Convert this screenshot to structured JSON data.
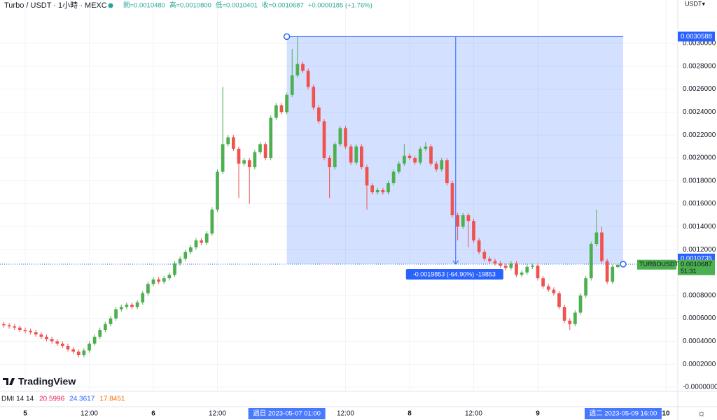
{
  "header": {
    "symbol": "Turbo / USDT · 1小時 · MEXC",
    "ohlc": [
      "開=0.0010480",
      "高=0.0010800",
      "低=0.0010401",
      "收=0.0010687",
      "+0.0000185 (+1.76%)"
    ]
  },
  "chart_data": {
    "type": "candlestick",
    "up_color": "#4caf50",
    "down_color": "#ef5350",
    "x": [
      -4,
      -3,
      -2,
      -1,
      0,
      1,
      2,
      3,
      4,
      5,
      6,
      7,
      8,
      9,
      10,
      11,
      12,
      13,
      14,
      15,
      16,
      17,
      18,
      19,
      20,
      21,
      22,
      23,
      24,
      25,
      26,
      27,
      28,
      29,
      30,
      31,
      32,
      33,
      34,
      35,
      36,
      37,
      38,
      39,
      40,
      41,
      42,
      43,
      44,
      45,
      46,
      47,
      48,
      49,
      50,
      51,
      52,
      53,
      54,
      55,
      56,
      57,
      58,
      59,
      60,
      61,
      62,
      63,
      64,
      65,
      66,
      67,
      68,
      69,
      70,
      71,
      72,
      73,
      74,
      75,
      76,
      77,
      78,
      79,
      80,
      81,
      82,
      83,
      84,
      85,
      86,
      87,
      88,
      89,
      90,
      91,
      92,
      93,
      94,
      95,
      96,
      97,
      98,
      99,
      100,
      101,
      102,
      103,
      104,
      105,
      106,
      107,
      108,
      109,
      110,
      111
    ],
    "open": [
      0.00055,
      0.00054,
      0.00053,
      0.00052,
      0.0005,
      0.00049,
      0.00048,
      0.00046,
      0.00044,
      0.00042,
      0.0004,
      0.00038,
      0.00036,
      0.00033,
      0.00031,
      0.00028,
      0.00032,
      0.00038,
      0.00044,
      0.0005,
      0.00055,
      0.0006,
      0.00068,
      0.0007,
      0.00072,
      0.0007,
      0.00074,
      0.00082,
      0.0009,
      0.00094,
      0.00092,
      0.00095,
      0.00098,
      0.00108,
      0.00112,
      0.00118,
      0.00122,
      0.00128,
      0.00126,
      0.00134,
      0.00155,
      0.00188,
      0.00212,
      0.00218,
      0.00208,
      0.00195,
      0.00198,
      0.00192,
      0.00205,
      0.00212,
      0.002,
      0.00235,
      0.00246,
      0.0024,
      0.00255,
      0.00272,
      0.00282,
      0.00276,
      0.00262,
      0.00244,
      0.00232,
      0.002,
      0.00192,
      0.00212,
      0.00226,
      0.0021,
      0.00196,
      0.0021,
      0.00192,
      0.00176,
      0.0017,
      0.00172,
      0.0017,
      0.00178,
      0.00188,
      0.00195,
      0.00202,
      0.002,
      0.00196,
      0.00208,
      0.0021,
      0.00195,
      0.0019,
      0.00198,
      0.00178,
      0.0015,
      0.0014,
      0.0015,
      0.00145,
      0.00128,
      0.00118,
      0.00112,
      0.0011,
      0.00108,
      0.00106,
      0.00104,
      0.00108,
      0.00098,
      0.001,
      0.00105,
      0.00106,
      0.00095,
      0.00088,
      0.00085,
      0.00082,
      0.0007,
      0.00058,
      0.00055,
      0.00065,
      0.0008,
      0.00095,
      0.00125,
      0.00135,
      0.0011,
      0.00092,
      0.001048
    ],
    "high": [
      0.00057,
      0.00056,
      0.00055,
      0.00054,
      0.00052,
      0.00051,
      0.0005,
      0.00048,
      0.00046,
      0.00044,
      0.00042,
      0.0004,
      0.00038,
      0.00035,
      0.00033,
      0.00034,
      0.0004,
      0.00046,
      0.00052,
      0.00057,
      0.00062,
      0.0007,
      0.00072,
      0.00074,
      0.00074,
      0.00076,
      0.00084,
      0.00092,
      0.00096,
      0.00096,
      0.00097,
      0.001,
      0.0011,
      0.00114,
      0.0012,
      0.00124,
      0.0013,
      0.0013,
      0.00136,
      0.00157,
      0.0019,
      0.00262,
      0.0022,
      0.0022,
      0.0021,
      0.002,
      0.002,
      0.00207,
      0.00214,
      0.00214,
      0.00237,
      0.00248,
      0.00248,
      0.00257,
      0.00295,
      0.0030588,
      0.00284,
      0.00278,
      0.00264,
      0.00246,
      0.00234,
      0.00202,
      0.00214,
      0.00228,
      0.00228,
      0.00212,
      0.00212,
      0.00212,
      0.00194,
      0.00178,
      0.00174,
      0.00174,
      0.0018,
      0.0019,
      0.00197,
      0.00212,
      0.00204,
      0.00202,
      0.0021,
      0.00214,
      0.00212,
      0.00197,
      0.002,
      0.002,
      0.0018,
      0.00152,
      0.00152,
      0.00152,
      0.00147,
      0.0013,
      0.0012,
      0.00114,
      0.00112,
      0.0011,
      0.00108,
      0.0011,
      0.0011,
      0.00102,
      0.00107,
      0.00108,
      0.00108,
      0.00097,
      0.0009,
      0.00087,
      0.00084,
      0.00072,
      0.0006,
      0.00067,
      0.00082,
      0.00097,
      0.00127,
      0.00155,
      0.0014,
      0.00112,
      0.00107,
      0.00108
    ],
    "low": [
      0.00052,
      0.00051,
      0.0005,
      0.00048,
      0.00047,
      0.00046,
      0.00044,
      0.00042,
      0.0004,
      0.00038,
      0.00036,
      0.00034,
      0.00031,
      0.00029,
      0.00026,
      0.00026,
      0.0003,
      0.00036,
      0.00042,
      0.00048,
      0.00053,
      0.00058,
      0.00066,
      0.00068,
      0.00068,
      0.00068,
      0.00072,
      0.0008,
      0.00088,
      0.0009,
      0.0009,
      0.00093,
      0.00096,
      0.00106,
      0.0011,
      0.00116,
      0.0012,
      0.00124,
      0.00124,
      0.00132,
      0.00153,
      0.00186,
      0.0021,
      0.00206,
      0.00165,
      0.00193,
      0.0016,
      0.0019,
      0.00203,
      0.00198,
      0.00198,
      0.00233,
      0.00238,
      0.00238,
      0.00253,
      0.0027,
      0.00274,
      0.0026,
      0.00242,
      0.0023,
      0.00198,
      0.00165,
      0.0019,
      0.0021,
      0.00208,
      0.00194,
      0.00194,
      0.0019,
      0.00155,
      0.00168,
      0.00168,
      0.00168,
      0.00168,
      0.00176,
      0.00186,
      0.00193,
      0.00198,
      0.00194,
      0.00194,
      0.00206,
      0.00193,
      0.00188,
      0.00188,
      0.00176,
      0.00148,
      0.00128,
      0.00138,
      0.00122,
      0.00126,
      0.00116,
      0.0011,
      0.00108,
      0.00106,
      0.00104,
      0.00102,
      0.00102,
      0.00096,
      0.00096,
      0.00098,
      0.00103,
      0.00093,
      0.00086,
      0.00083,
      0.0008,
      0.00068,
      0.00056,
      0.0005,
      0.00053,
      0.00063,
      0.00078,
      0.00093,
      0.00123,
      0.00108,
      0.0009,
      0.0009,
      0.0010401
    ],
    "close": [
      0.00054,
      0.00053,
      0.00052,
      0.0005,
      0.00049,
      0.00048,
      0.00046,
      0.00044,
      0.00042,
      0.0004,
      0.00038,
      0.00036,
      0.00033,
      0.00031,
      0.00028,
      0.00032,
      0.00038,
      0.00044,
      0.0005,
      0.00055,
      0.0006,
      0.00068,
      0.0007,
      0.00072,
      0.0007,
      0.00074,
      0.00082,
      0.0009,
      0.00094,
      0.00092,
      0.00095,
      0.00098,
      0.00108,
      0.00112,
      0.00118,
      0.00122,
      0.00128,
      0.00126,
      0.00134,
      0.00155,
      0.00188,
      0.00212,
      0.00218,
      0.00208,
      0.00195,
      0.00198,
      0.00192,
      0.00205,
      0.00212,
      0.002,
      0.00235,
      0.00246,
      0.0024,
      0.00255,
      0.00272,
      0.00282,
      0.00276,
      0.00262,
      0.00244,
      0.00232,
      0.002,
      0.00192,
      0.00212,
      0.00226,
      0.0021,
      0.00196,
      0.0021,
      0.00192,
      0.00176,
      0.0017,
      0.00172,
      0.0017,
      0.00178,
      0.00188,
      0.00195,
      0.00202,
      0.002,
      0.00196,
      0.00208,
      0.0021,
      0.00195,
      0.0019,
      0.00198,
      0.00178,
      0.0015,
      0.0014,
      0.0015,
      0.00145,
      0.00128,
      0.00118,
      0.00112,
      0.0011,
      0.00108,
      0.00106,
      0.00104,
      0.00108,
      0.00098,
      0.001,
      0.00105,
      0.00106,
      0.00095,
      0.00088,
      0.00085,
      0.00082,
      0.0007,
      0.00058,
      0.00055,
      0.00065,
      0.0008,
      0.00095,
      0.00125,
      0.00135,
      0.0011,
      0.00092,
      0.0010502,
      0.0010687
    ],
    "xlim": [
      -4.72,
      122.23
    ],
    "xticks": [
      {
        "value": 0,
        "label": "5"
      },
      {
        "value": 12,
        "label": "12:00"
      },
      {
        "value": 24,
        "label": "6"
      },
      {
        "value": 36,
        "label": "12:00"
      },
      {
        "value": 60,
        "label": "12:00"
      },
      {
        "value": 72,
        "label": "8"
      },
      {
        "value": 84,
        "label": "12:00"
      },
      {
        "value": 96,
        "label": "9"
      },
      {
        "value": 120,
        "label": "10"
      }
    ],
    "ylim": [
      -3.66e-05,
      0.003378
    ],
    "yticks": [
      {
        "value": 0,
        "label": "-0.0000000"
      },
      {
        "value": 0.0002,
        "label": "0.0002000"
      },
      {
        "value": 0.0004,
        "label": "0.0004000"
      },
      {
        "value": 0.0006,
        "label": "0.0006000"
      },
      {
        "value": 0.0008,
        "label": "0.0008000"
      },
      {
        "value": 0.0012,
        "label": "0.0012000"
      },
      {
        "value": 0.0014,
        "label": "0.0014000"
      },
      {
        "value": 0.0016,
        "label": "0.0016000"
      },
      {
        "value": 0.0018,
        "label": "0.0018000"
      },
      {
        "value": 0.002,
        "label": "0.0020000"
      },
      {
        "value": 0.0022,
        "label": "0.0022000"
      },
      {
        "value": 0.0024,
        "label": "0.0024000"
      },
      {
        "value": 0.0026,
        "label": "0.0026000"
      },
      {
        "value": 0.0028,
        "label": "0.0028000"
      },
      {
        "value": 0.003,
        "label": "0.0030000"
      }
    ],
    "grid": true,
    "currency": "USDT▾",
    "ticker": "TURBOUSDT",
    "countdown": "51:31",
    "measure": {
      "top": 0.0030588,
      "bottom": 0.0010735,
      "start": 49,
      "end": 112,
      "label": "-0.0019853 (-64.90%) -19853",
      "start_label": "週日 2023-05-07  01:00",
      "end_label": "週二 2023-05-09  16:00",
      "color": "#2962ff"
    }
  },
  "indicator": {
    "name": "DMI 14 14",
    "values": [
      20.5996,
      24.3617,
      17.8451
    ],
    "colors": [
      "#e91e63",
      "#2962ff",
      "#ff6d00"
    ]
  },
  "logo": "TradingView"
}
